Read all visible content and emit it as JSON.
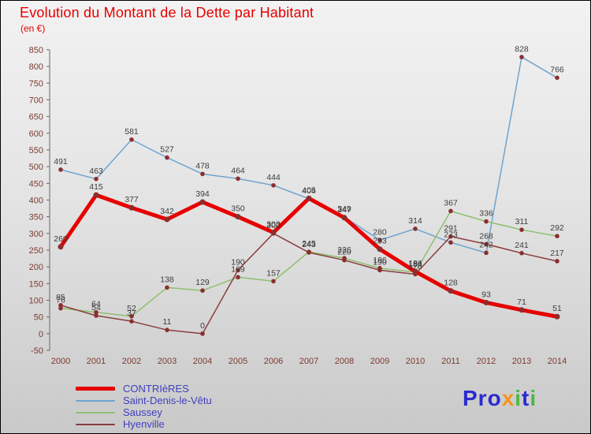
{
  "chart_data": {
    "type": "line",
    "title": "Evolution du Montant de la Dette par Habitant",
    "subtitle": "(en €)",
    "x": [
      "2000",
      "2001",
      "2002",
      "2003",
      "2004",
      "2005",
      "2006",
      "2007",
      "2008",
      "2009",
      "2010",
      "2011",
      "2012",
      "2013",
      "2014"
    ],
    "ylim": [
      -50,
      850
    ],
    "ytick_step": 50,
    "grid": false,
    "legend_position": "bottom-left",
    "series": [
      {
        "name": "CONTRIèRES",
        "color": "#e60000",
        "width": 5,
        "values": [
          260,
          415,
          377,
          342,
          394,
          350,
          303,
          405,
          347,
          253,
          186,
          128,
          93,
          71,
          51
        ]
      },
      {
        "name": "Saint-Denis-le-Vêtu",
        "color": "#6fa4cf",
        "width": 1.5,
        "values": [
          491,
          463,
          581,
          527,
          478,
          464,
          444,
          404,
          349,
          280,
          314,
          273,
          242,
          828,
          766
        ]
      },
      {
        "name": "Saussey",
        "color": "#8fbf6f",
        "width": 1.5,
        "values": [
          76,
          64,
          52,
          138,
          129,
          169,
          157,
          245,
          226,
          196,
          184,
          367,
          336,
          311,
          292
        ]
      },
      {
        "name": "Hyenville",
        "color": "#8b3d3d",
        "width": 1.5,
        "values": [
          85,
          54,
          37,
          11,
          0,
          190,
          300,
          243,
          220,
          190,
          178,
          291,
          268,
          241,
          217
        ]
      }
    ]
  },
  "colors": {
    "title": "#e60000",
    "legend_text": "#3f3fc0",
    "tick_labels": "#7d3a30",
    "value_labels": "#3d3d3d",
    "marker": "#8b2e2e",
    "axis": "#666666",
    "background_top": "#f2f2f2",
    "background_bottom": "#c9c9c9"
  },
  "logo": {
    "letters": [
      {
        "ch": "Pro",
        "color": "#2b2bd0"
      },
      {
        "ch": "x",
        "color": "#f7941d"
      },
      {
        "ch": "i",
        "color": "#4db848"
      },
      {
        "ch": "t",
        "color": "#2b2bd0"
      },
      {
        "ch": "i",
        "color": "#4db848"
      }
    ]
  }
}
